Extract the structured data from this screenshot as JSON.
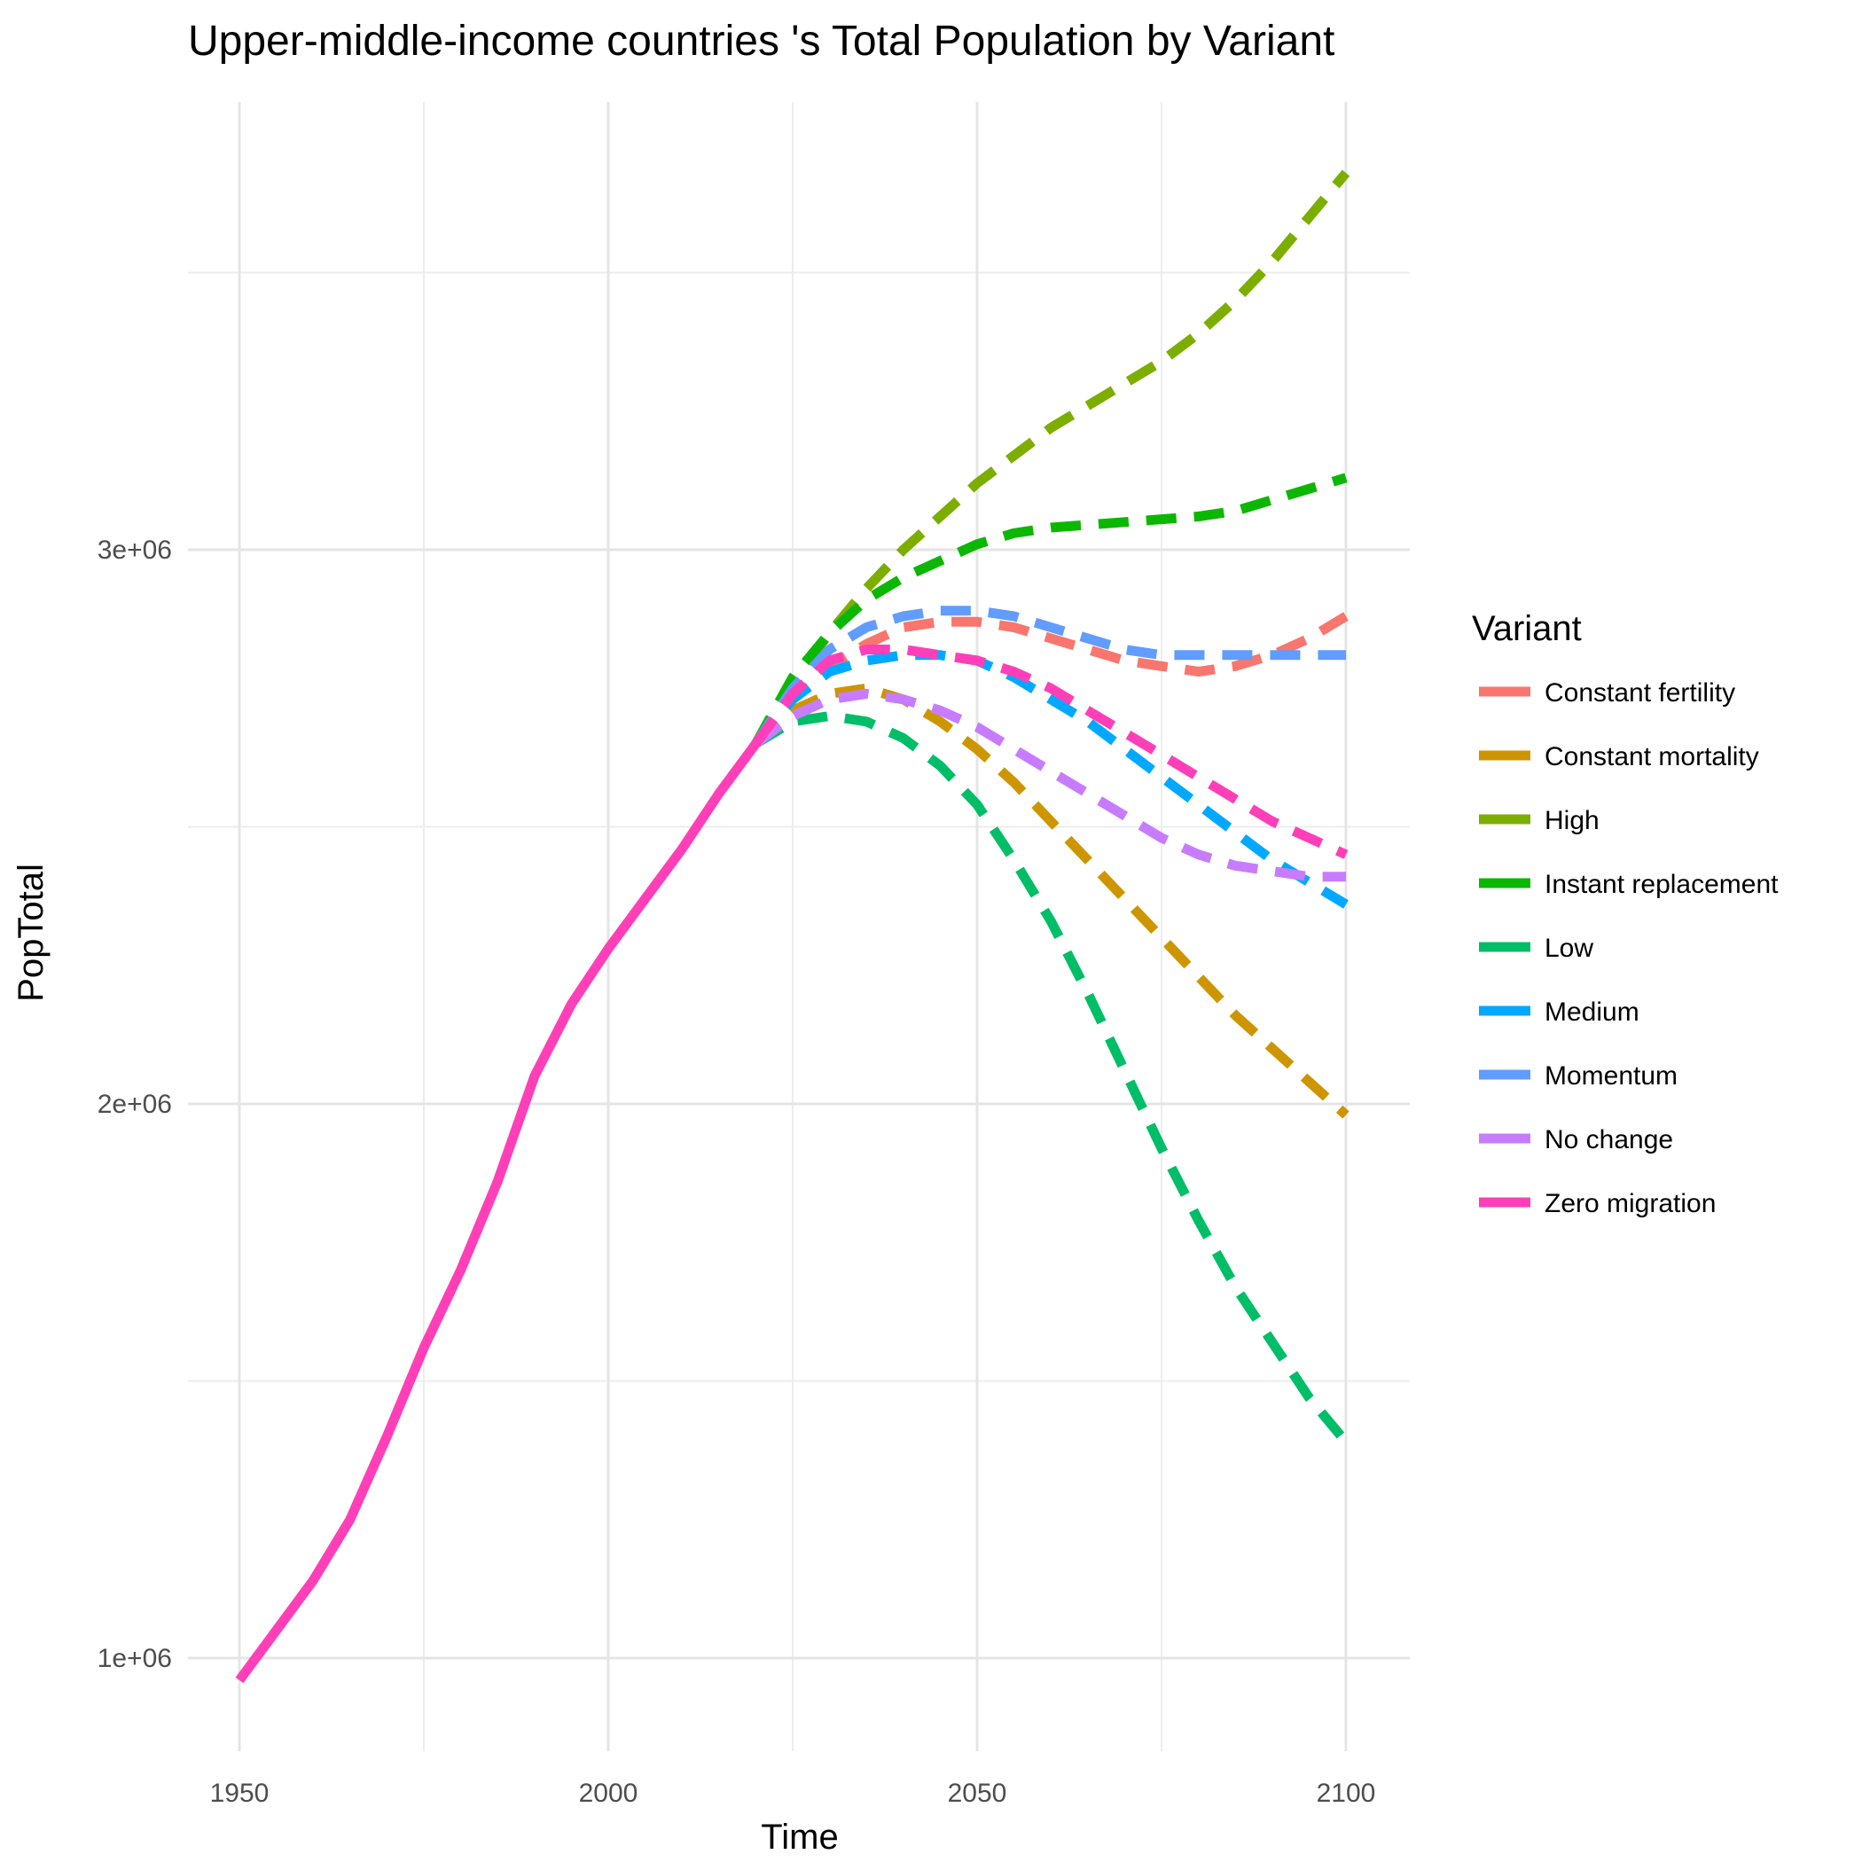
{
  "chart_data": {
    "type": "line",
    "title": "Upper-middle-income countries 's Total Population by Variant",
    "xlabel": "Time",
    "ylabel": "PopTotal",
    "xlim": [
      1950,
      2100
    ],
    "ylim": [
      900000,
      3600000
    ],
    "x_ticks": [
      1950,
      2000,
      2050,
      2100
    ],
    "x_tick_labels": [
      "1950",
      "2000",
      "2050",
      "2100"
    ],
    "y_ticks": [
      1000000,
      2000000,
      3000000
    ],
    "y_tick_labels": [
      "1e+06",
      "2e+06",
      "3e+06"
    ],
    "grid": true,
    "legend": {
      "title": "Variant",
      "position": "right"
    },
    "history": {
      "series": "Zero migration",
      "line_style": "solid",
      "x": [
        1950,
        1955,
        1960,
        1965,
        1970,
        1975,
        1980,
        1985,
        1990,
        1995,
        2000,
        2005,
        2010,
        2015,
        2020
      ],
      "y": [
        960000,
        1050000,
        1140000,
        1250000,
        1400000,
        1560000,
        1700000,
        1860000,
        2050000,
        2180000,
        2280000,
        2370000,
        2460000,
        2560000,
        2650000
      ]
    },
    "x": [
      2020,
      2025,
      2030,
      2035,
      2040,
      2045,
      2050,
      2055,
      2060,
      2065,
      2070,
      2075,
      2080,
      2085,
      2090,
      2095,
      2100
    ],
    "series": [
      {
        "name": "Constant fertility",
        "color": "#F8766D",
        "values": [
          2650000,
          2730000,
          2790000,
          2830000,
          2860000,
          2870000,
          2870000,
          2860000,
          2840000,
          2820000,
          2800000,
          2790000,
          2780000,
          2790000,
          2810000,
          2840000,
          2880000
        ]
      },
      {
        "name": "Constant mortality",
        "color": "#CD9600",
        "values": [
          2650000,
          2710000,
          2740000,
          2750000,
          2730000,
          2690000,
          2640000,
          2580000,
          2510000,
          2440000,
          2370000,
          2300000,
          2230000,
          2160000,
          2100000,
          2040000,
          1980000
        ]
      },
      {
        "name": "High",
        "color": "#7CAE00",
        "values": [
          2650000,
          2760000,
          2850000,
          2930000,
          3000000,
          3060000,
          3120000,
          3170000,
          3220000,
          3260000,
          3300000,
          3340000,
          3390000,
          3450000,
          3520000,
          3600000,
          3680000
        ]
      },
      {
        "name": "Instant replacement",
        "color": "#0CB702",
        "values": [
          2650000,
          2770000,
          2850000,
          2910000,
          2950000,
          2980000,
          3010000,
          3030000,
          3040000,
          3045000,
          3050000,
          3055000,
          3060000,
          3070000,
          3090000,
          3110000,
          3130000
        ]
      },
      {
        "name": "Low",
        "color": "#00BE67",
        "values": [
          2650000,
          2690000,
          2700000,
          2690000,
          2660000,
          2610000,
          2540000,
          2440000,
          2330000,
          2200000,
          2060000,
          1920000,
          1790000,
          1670000,
          1570000,
          1470000,
          1390000
        ]
      },
      {
        "name": "Medium",
        "color": "#00A9FF",
        "values": [
          2650000,
          2730000,
          2780000,
          2800000,
          2810000,
          2810000,
          2800000,
          2770000,
          2730000,
          2690000,
          2640000,
          2590000,
          2540000,
          2490000,
          2440000,
          2400000,
          2360000
        ]
      },
      {
        "name": "Momentum",
        "color": "#619CFF",
        "values": [
          2650000,
          2750000,
          2820000,
          2860000,
          2880000,
          2890000,
          2890000,
          2880000,
          2860000,
          2840000,
          2820000,
          2810000,
          2810000,
          2810000,
          2810000,
          2810000,
          2810000
        ]
      },
      {
        "name": "No change",
        "color": "#C77CFF",
        "values": [
          2650000,
          2700000,
          2730000,
          2740000,
          2730000,
          2710000,
          2680000,
          2640000,
          2600000,
          2560000,
          2520000,
          2480000,
          2450000,
          2430000,
          2420000,
          2410000,
          2410000
        ]
      },
      {
        "name": "Zero migration",
        "color": "#FF3FB8",
        "values": [
          2650000,
          2740000,
          2800000,
          2820000,
          2820000,
          2810000,
          2800000,
          2780000,
          2750000,
          2710000,
          2670000,
          2630000,
          2590000,
          2550000,
          2510000,
          2480000,
          2450000
        ]
      }
    ]
  }
}
